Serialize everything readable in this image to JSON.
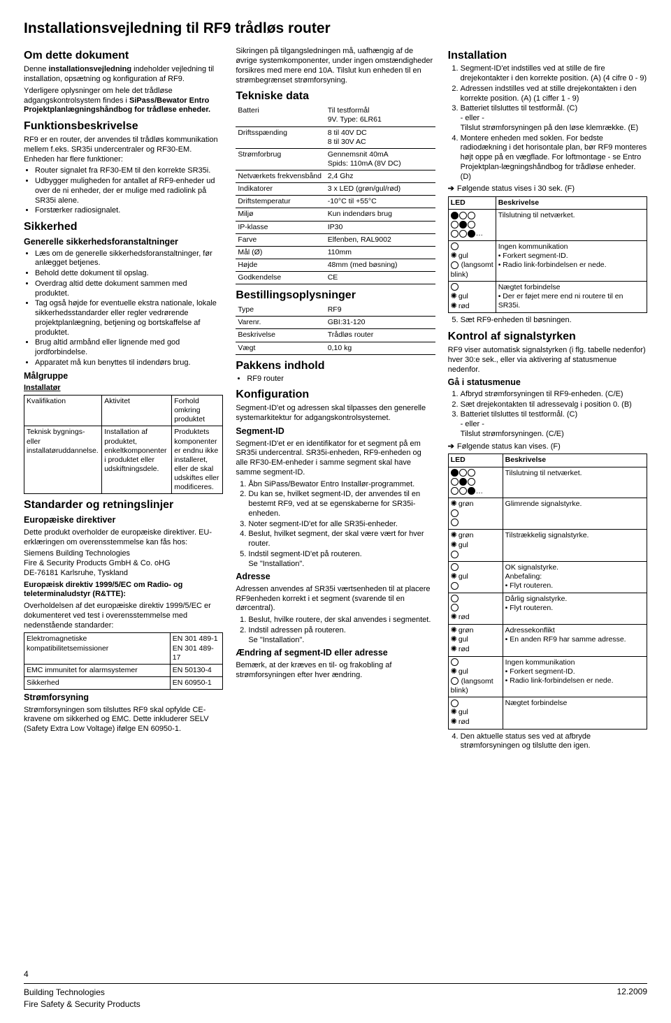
{
  "doc_title": "Installationsvejledning til RF9 trådløs router",
  "page_number": "4",
  "footer": {
    "line1": "Building Technologies",
    "line2": "Fire Safety & Security Products",
    "date": "12.2009"
  },
  "col1": {
    "about_h": "Om dette dokument",
    "about_p1a": "Denne ",
    "about_p1b": "installationsvejledning",
    "about_p1c": " indeholder vejledning til installation, opsætning og konfiguration af RF9.",
    "about_p2a": "Yderligere oplysninger om hele det trådløse adgangskontrolsystem findes i ",
    "about_p2b": "SiPass/Bewator Entro Projektplanlægningshåndbog for trådløse enheder.",
    "func_h": "Funktionsbeskrivelse",
    "func_p": "RF9 er en router, der anvendes til trådløs kommunikation mellem f.eks. SR35i undercentraler og RF30-EM. Enheden har flere funktioner:",
    "func_items": [
      "Router signalet fra RF30-EM til den korrekte SR35i.",
      "Udbygger muligheden for antallet af RF9-enheder ud over de ni enheder, der er mulige med radiolink på SR35i alene.",
      "Forstærker radiosignalet."
    ],
    "safety_h": "Sikkerhed",
    "safety_sub": "Generelle sikkerhedsforanstaltninger",
    "safety_items": [
      "Læs om de generelle sikkerhedsforanstaltninger, før anlægget betjenes.",
      "Behold dette dokument til opslag.",
      "Overdrag altid dette dokument sammen med produktet.",
      "Tag også højde for eventuelle ekstra nationale, lokale sikkerhedsstandarder eller regler vedrørende projektplanlægning, betjening og bortskaffelse af produktet.",
      "Brug altid armbånd eller lignende med god jordforbindelse.",
      "Apparatet må kun benyttes til indendørs brug."
    ],
    "target_h": "Målgruppe",
    "target_sub": "Installatør",
    "target_table": {
      "headers": [
        "Kvalifikation",
        "Aktivitet",
        "Forhold omkring produktet"
      ],
      "row": [
        "Teknisk bygnings- eller installatøruddannelse.",
        "Installation af produktet, enkeltkomponenter i produktet eller udskiftningsdele.",
        "Produktets komponenter er endnu ikke installeret, eller de skal udskiftes eller modificeres."
      ]
    },
    "std_h": "Standarder og retningslinjer",
    "std_sub": "Europæiske direktiver",
    "std_p1": "Dette produkt overholder de europæiske direktiver. EU-erklæringen om overensstemmelse kan fås hos:",
    "std_addr1": "Siemens Building Technologies",
    "std_addr2": "Fire & Security Products GmbH & Co. oHG",
    "std_addr3": "DE-76181 Karlsruhe, Tyskland",
    "std_bold": "Europæisk direktiv 1999/5/EC om Radio- og teleterminaludstyr (R&TTE):",
    "std_p2": "Overholdelsen af det europæiske direktiv 1999/5/EC er dokumenteret ved test i overensstemmelse med nedenstående standarder:",
    "std_table": [
      [
        "Elektromagnetiske kompatibilitetsemissioner",
        "EN 301 489-1\nEN 301 489-17"
      ],
      [
        "EMC immunitet for alarmsystemer",
        "EN 50130-4"
      ],
      [
        "Sikkerhed",
        "EN 60950-1"
      ]
    ],
    "psu_h": "Strømforsyning",
    "psu_p": "Strømforsyningen som tilsluttes RF9 skal opfylde CE-kravene om sikkerhed og EMC. Dette inkluderer SELV (Safety Extra Low Voltage) ifølge EN 60950-1."
  },
  "col2": {
    "fuse_p": "Sikringen på tilgangsledningen må, uafhængig af de øvrige systemkomponenter, under ingen omstændigheder forsikres med mere end 10A. Tilslut kun enheden til en strømbegrænset strømforsyning.",
    "tech_h": "Tekniske data",
    "tech_rows": [
      [
        "Batteri",
        "Til testformål\n9V. Type: 6LR61"
      ],
      [
        "Driftsspænding",
        "8 til 40V DC\n8 til 30V AC"
      ],
      [
        "Strømforbrug",
        "Gennemsnit 40mA\nSpids: 110mA (8V DC)"
      ],
      [
        "Netværkets frekvensbånd",
        "2,4 Ghz"
      ],
      [
        "Indikatorer",
        "3 x LED (grøn/gul/rød)"
      ],
      [
        "Driftstemperatur",
        "-10°C til +55°C"
      ],
      [
        "Miljø",
        "Kun indendørs brug"
      ],
      [
        "IP-klasse",
        "IP30"
      ],
      [
        "Farve",
        "Elfenben, RAL9002"
      ],
      [
        "Mål (Ø)",
        "110mm"
      ],
      [
        "Højde",
        "48mm (med bøsning)"
      ],
      [
        "Godkendelse",
        "CE"
      ]
    ],
    "order_h": "Bestillingsoplysninger",
    "order_rows": [
      [
        "Type",
        "RF9"
      ],
      [
        "Varenr.",
        "GBI:31-120"
      ],
      [
        "Beskrivelse",
        "Trådløs router"
      ],
      [
        "Vægt",
        "0,10 kg"
      ]
    ],
    "pack_h": "Pakkens indhold",
    "pack_item": "RF9 router",
    "conf_h": "Konfiguration",
    "conf_p": "Segment-ID'et og adressen skal tilpasses den generelle systemarkitektur for adgangskontrolsystemet.",
    "seg_h": "Segment-ID",
    "seg_p": "Segment-ID'et er en identifikator for et segment på em SR35i undercentral. SR35i-enheden, RF9-enheden og alle RF30-EM-enheder i samme segment skal have samme segment-ID.",
    "seg_steps": [
      "Åbn SiPass/Bewator Entro Installør-programmet.",
      "Du kan se, hvilket segment-ID, der anvendes til en bestemt RF9, ved at se egenskaberne for SR35i-enheden.",
      "Noter segment-ID'et for alle SR35i-enheder.",
      "Beslut, hvilket segment, der skal være vært for hver router.",
      "Indstil segment-ID'et på routeren.\nSe \"Installation\"."
    ],
    "addr_h": "Adresse",
    "addr_p": "Adressen anvendes af SR35i værtsenheden til at placere RF9enheden korrekt i et segment (svarende til en dørcentral).",
    "addr_steps": [
      "Beslut, hvilke routere, der skal anvendes i segmentet.",
      "Indstil adressen på routeren.\nSe \"Installation\"."
    ],
    "change_h": "Ændring af segment-ID eller adresse",
    "change_p": "Bemærk, at der kræves en til- og frakobling af strømforsyningen efter hver ændring."
  },
  "col3": {
    "inst_h": "Installation",
    "inst_steps": [
      "Segment-ID'et indstilles ved at stille de fire drejekontakter i den korrekte position. (A) (4 cifre 0 - 9)",
      "Adressen indstilles ved at stille drejekontakten i den korrekte position. (A) (1 ciffer 1 - 9)",
      "Batteriet tilsluttes til testformål. (C)\n- eller -\nTilslut strømforsyningen på den løse klemrække. (E)",
      "Montere enheden med soklen. For bedste radiodækning i det horisontale plan, bør RF9 monteres højt oppe på en vægflade. For loftmontage - se Entro Projektplan-lægningshåndbog for trådløse enheder. (D)"
    ],
    "inst_arrow": "Følgende status vises i 30 sek. (F)",
    "led_hdr": [
      "LED",
      "Beskrivelse"
    ],
    "led_rows1": [
      {
        "pattern": "f..|.f.|..d",
        "desc": "Tilslutning til netværket."
      },
      {
        "pattern": "emptyg|starg|parens",
        "desc": "Ingen kommunikation\n• Forkert segment-ID.\n• Radio link-forbindelsen er nede."
      },
      {
        "pattern": "empty|starg|starr",
        "desc": "Nægtet forbindelse\n• Der er føjet mere end ni routere til en SR35i."
      }
    ],
    "inst_after": "Sæt RF9-enheden til bøsningen.",
    "ctrl_h": "Kontrol af signalstyrken",
    "ctrl_p": "RF9 viser automatisk signalstyrken (i flg. tabelle nedenfor) hver 30:e sek., eller via aktivering af statusmenue nedenfor.",
    "go_h": "Gå i statusmenue",
    "go_steps": [
      "Afbryd strømforsyningen til RF9-enheden. (C/E)",
      "Sæt drejekontakten til adressevalg i position 0. (B)",
      "Batteriet tilsluttes til testformål. (C)\n- eller -\nTilslut strømforsyningen. (C/E)"
    ],
    "go_arrow": "Følgende status kan vises. (F)",
    "led_rows2": [
      {
        "pattern": "f..|.f.|..d",
        "desc": "Tilslutning til netværket."
      },
      {
        "pattern": "stargrn|empty|empty",
        "desc": "Glimrende signalstyrke."
      },
      {
        "pattern": "stargrn|stargul|empty",
        "desc": "Tilstrækkelig signalstyrke."
      },
      {
        "pattern": "empty|stargul|empty",
        "desc": "OK signalstyrke.\nAnbefaling:\n• Flyt routeren."
      },
      {
        "pattern": "empty|empty|starrod",
        "desc": "Dårlig signalstyrke.\n• Flyt routeren."
      },
      {
        "pattern": "stargrn|stargul|starrod",
        "desc": "Adressekonflikt\n• En anden RF9 har samme adresse."
      },
      {
        "pattern": "empty|stargulb|blink",
        "desc": "Ingen kommunikation\n• Forkert segment-ID.\n• Radio link-forbindelsen er nede."
      },
      {
        "pattern": "empty|stargul|starrod",
        "desc": "Nægtet forbindelse"
      }
    ],
    "ctrl_after": "Den aktuelle status ses ved at afbryde strømforsyningen og tilslutte den igen."
  }
}
